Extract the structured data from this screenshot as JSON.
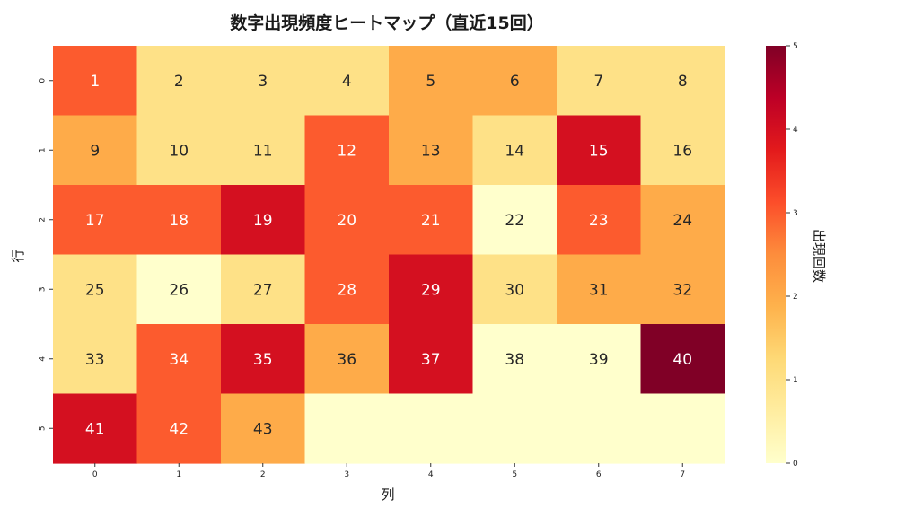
{
  "chart_data": {
    "type": "heatmap",
    "title": "数字出現頻度ヒートマップ（直近15回）",
    "xlabel": "列",
    "ylabel": "行",
    "colorbar_label": "出現回数",
    "x_ticks": [
      "0",
      "1",
      "2",
      "3",
      "4",
      "5",
      "6",
      "7"
    ],
    "y_ticks": [
      "0",
      "1",
      "2",
      "3",
      "4",
      "5"
    ],
    "colorbar_ticks": [
      "0",
      "1",
      "2",
      "3",
      "4",
      "5"
    ],
    "vmin": 0,
    "vmax": 5,
    "colormap": "YlOrRd",
    "numbers": [
      [
        "1",
        "2",
        "3",
        "4",
        "5",
        "6",
        "7",
        "8"
      ],
      [
        "9",
        "10",
        "11",
        "12",
        "13",
        "14",
        "15",
        "16"
      ],
      [
        "17",
        "18",
        "19",
        "20",
        "21",
        "22",
        "23",
        "24"
      ],
      [
        "25",
        "26",
        "27",
        "28",
        "29",
        "30",
        "31",
        "32"
      ],
      [
        "33",
        "34",
        "35",
        "36",
        "37",
        "38",
        "39",
        "40"
      ],
      [
        "41",
        "42",
        "43",
        "",
        "",
        "",
        "",
        ""
      ]
    ],
    "counts": [
      [
        3,
        1,
        1,
        1,
        2,
        2,
        1,
        1
      ],
      [
        2,
        1,
        1,
        3,
        2,
        1,
        4,
        1
      ],
      [
        3,
        3,
        4,
        3,
        3,
        0,
        3,
        2
      ],
      [
        1,
        0,
        1,
        3,
        4,
        1,
        2,
        2
      ],
      [
        1,
        3,
        4,
        2,
        4,
        0,
        0,
        5
      ],
      [
        4,
        3,
        2,
        0,
        0,
        0,
        0,
        0
      ]
    ]
  }
}
